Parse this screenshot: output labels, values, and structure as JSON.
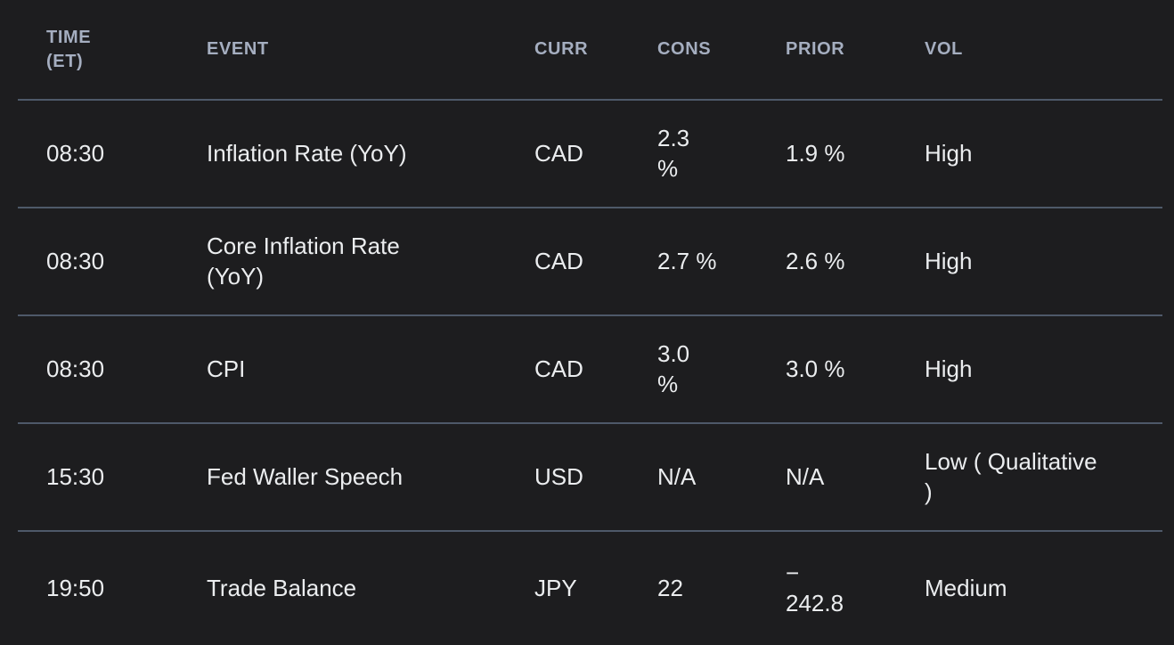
{
  "colors": {
    "bg": "#1d1d1f",
    "text": "#ebedef",
    "header-text": "#a5aec0",
    "divider": "#4e5969"
  },
  "table": {
    "columns": [
      {
        "key": "time",
        "label": "TIME\n(ET)"
      },
      {
        "key": "event",
        "label": "EVENT"
      },
      {
        "key": "curr",
        "label": "CURR"
      },
      {
        "key": "cons",
        "label": "CONS"
      },
      {
        "key": "prior",
        "label": "PRIOR"
      },
      {
        "key": "vol",
        "label": "VOL"
      }
    ],
    "rows": [
      {
        "time": "08:30",
        "event": "Inflation Rate (YoY)",
        "curr": "CAD",
        "cons": "2.3\n%",
        "prior": "1.9 %",
        "vol": "High"
      },
      {
        "time": "08:30",
        "event": "Core Inflation Rate\n(YoY)",
        "curr": "CAD",
        "cons": "2.7 %",
        "prior": "2.6 %",
        "vol": "High"
      },
      {
        "time": "08:30",
        "event": "CPI",
        "curr": "CAD",
        "cons": "3.0\n%",
        "prior": "3.0 %",
        "vol": "High"
      },
      {
        "time": "15:30",
        "event": "Fed Waller Speech",
        "curr": "USD",
        "cons": "N/A",
        "prior": "N/A",
        "vol": "Low ( Qualitative\n)"
      },
      {
        "time": "19:50",
        "event": "Trade Balance",
        "curr": "JPY",
        "cons": "22",
        "prior": "−\n242.8",
        "vol": "Medium"
      }
    ]
  }
}
